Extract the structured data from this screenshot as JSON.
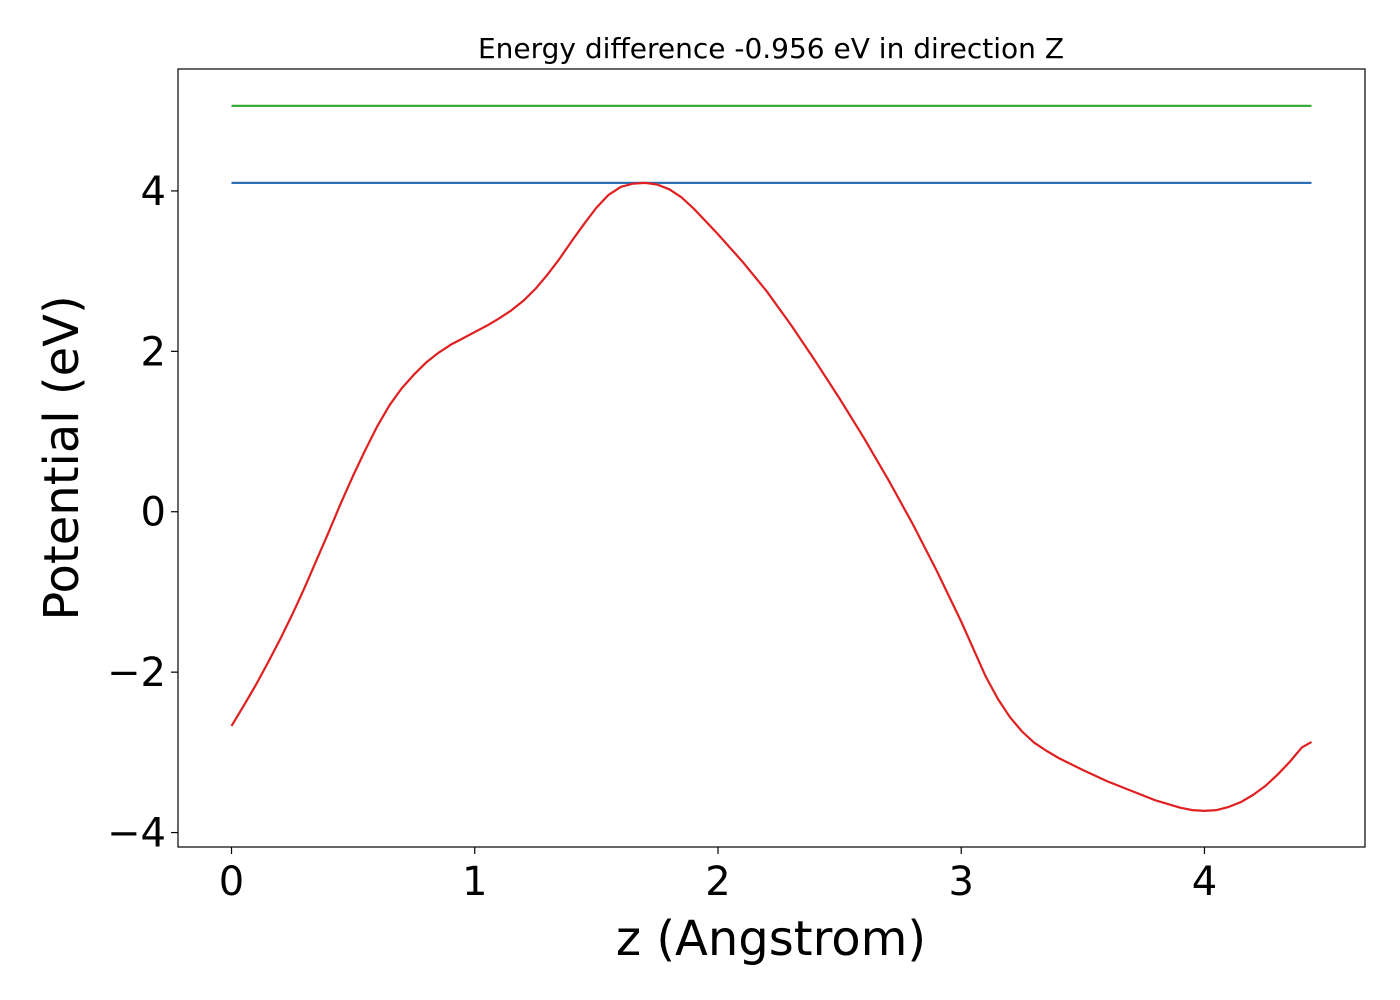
{
  "chart_data": {
    "type": "line",
    "title": "Energy difference -0.956 eV in direction Z",
    "xlabel": "z (Angstrom)",
    "ylabel": "Potential (eV)",
    "xlim": [
      -0.22,
      4.66
    ],
    "ylim": [
      -4.18,
      5.52
    ],
    "xticks": [
      0,
      1,
      2,
      3,
      4
    ],
    "yticks": [
      -4,
      -2,
      0,
      2,
      4
    ],
    "grid": false,
    "legend": "none",
    "series": [
      {
        "color": "#2b6fb5",
        "x": [
          0,
          4.44
        ],
        "y": [
          4.1,
          4.1
        ]
      },
      {
        "color": "#3aaa3a",
        "x": [
          0,
          4.44
        ],
        "y": [
          5.06,
          5.06
        ]
      },
      {
        "color": "#e02020",
        "x": [
          0,
          0.05,
          0.1,
          0.15,
          0.2,
          0.25,
          0.3,
          0.35,
          0.4,
          0.45,
          0.5,
          0.55,
          0.6,
          0.65,
          0.7,
          0.75,
          0.8,
          0.85,
          0.9,
          0.95,
          1.0,
          1.05,
          1.1,
          1.15,
          1.2,
          1.25,
          1.3,
          1.35,
          1.4,
          1.45,
          1.5,
          1.55,
          1.6,
          1.65,
          1.7,
          1.75,
          1.8,
          1.85,
          1.9,
          1.95,
          2.0,
          2.1,
          2.2,
          2.3,
          2.4,
          2.5,
          2.6,
          2.7,
          2.8,
          2.9,
          3.0,
          3.1,
          3.15,
          3.2,
          3.25,
          3.3,
          3.35,
          3.4,
          3.5,
          3.6,
          3.7,
          3.8,
          3.9,
          3.95,
          4.0,
          4.05,
          4.1,
          4.15,
          4.2,
          4.25,
          4.3,
          4.35,
          4.4,
          4.44
        ],
        "y": [
          -2.67,
          -2.42,
          -2.16,
          -1.88,
          -1.59,
          -1.28,
          -0.95,
          -0.6,
          -0.25,
          0.11,
          0.45,
          0.77,
          1.07,
          1.33,
          1.54,
          1.71,
          1.86,
          1.98,
          2.08,
          2.16,
          2.24,
          2.32,
          2.41,
          2.51,
          2.63,
          2.78,
          2.96,
          3.16,
          3.38,
          3.59,
          3.79,
          3.95,
          4.05,
          4.09,
          4.1,
          4.08,
          4.02,
          3.92,
          3.78,
          3.62,
          3.46,
          3.12,
          2.75,
          2.33,
          1.88,
          1.41,
          0.92,
          0.4,
          -0.15,
          -0.74,
          -1.37,
          -2.05,
          -2.33,
          -2.56,
          -2.74,
          -2.88,
          -2.98,
          -3.07,
          -3.22,
          -3.36,
          -3.48,
          -3.6,
          -3.69,
          -3.72,
          -3.73,
          -3.72,
          -3.68,
          -3.62,
          -3.53,
          -3.42,
          -3.28,
          -3.12,
          -2.94,
          -2.87
        ]
      }
    ]
  }
}
